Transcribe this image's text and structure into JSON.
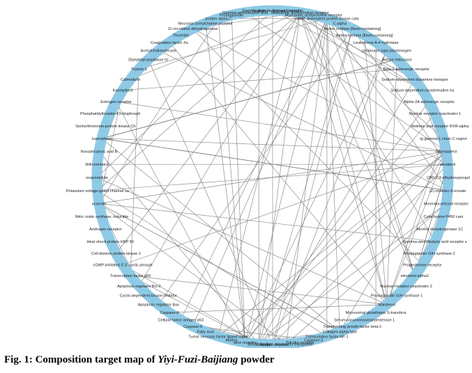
{
  "figure": {
    "caption_prefix": "Fig. 1: Composition target map of ",
    "caption_italic": "Yiyi-Fuzi-Baijiang",
    "caption_suffix": " powder"
  },
  "network": {
    "node_color": "#8ecae6",
    "edge_color": "#7a7a7a",
    "nodes": [
      "Gamma-aminobutyric acid receptor",
      "Sodium channel",
      "Muscarinic acetylcholine receptor M1",
      "Muscarinic acetylcholine receptor M3",
      "cAMP-dependent protein kinase catalytic subunit",
      "C-alpha",
      "Amine oxidase [flavin-containing] A",
      "Amine oxidase [flavin-containing] B",
      "Leukotriene A-4 hydrolase",
      "Urokinase-type plasminogen",
      "Aldose reductase",
      "Beta-2 adrenergic receptor",
      "Sodium-dependent dopamine transporter",
      "Sodium-dependent noradrenaline transporter",
      "Alpha-2A adrenergic receptor",
      "Nuclear receptor coactivator 1",
      "Retinoic acid receptor RXR-alpha",
      "Ig gamma-1 chain C region",
      "Stigmasterol",
      "sitosterol",
      "(2R)-2,3-dihydroxypropyl",
      "(Z)-octadec-9-enoate",
      "Mineralocorticoid receptor",
      "Cytochrome P450 cam",
      "Alcohol dehydrogenase 1C",
      "Gamma-aminobutyric acid receptor subunit alpha-1",
      "Prostaglandin G/H synthase 2",
      "Progesterone receptor",
      "sitosterol alpha1",
      "Nuclear receptor coactivator 2",
      "Prostaglandin G/H synthase 1",
      "Mandenol",
      "Microsomal glutathione S-transferase",
      "Serum paraoxonase/arylesterase 1",
      "Transforming growth factor beta-1",
      "Collagen alpha type",
      "Transcription factor AP-1",
      "Caspase-3",
      "Toll-like receptor",
      "Sodium-dependent transporter",
      "Glucagon receptor",
      "Solute carrier",
      "olive receptor",
      "Mutton",
      "Tumor necrosis factor ligand superfamily member 6",
      "Fatty acid",
      "Caspase-9",
      "Cellular tumor antigen p53",
      "Caspase-8",
      "Apoptosis regulator Bax",
      "Cyclin-dependent kinase inhibitor 1",
      "Apoptosis regulator Bcl-2",
      "Transcription factor p65",
      "cGMP-inhibited 3',5'-cyclic phosphodiesterase A",
      "Cell division protein kinase 2",
      "Heat shock protein HSP 90",
      "Androgen receptor",
      "Nitric oxide synthase, inducible",
      "acacetin",
      "Potassium voltage-gated channel subfamily H member 2",
      "isoprostolide",
      "Wilmorinine C",
      "Nonadecanoic acid B",
      "kaempferol",
      "Serine/threonine-protein kinase Chk1",
      "Phosphatidylinositol-4,5-bisphosphate 3-kinase catalytic subunit, gamma isoform",
      "Estrogen receptor",
      "Kaempferol",
      "Calmodulin",
      "Trypsin-1",
      "Dipeptidyl peptidase IV",
      "Acetylcholinesterase",
      "Coagulation factor Xa",
      "Thrombin",
      "11-cis-retinol dehydrogenase",
      "Neuronal acetylcholine receptor",
      "protein alpha-7",
      "Prostaglandin",
      "Gamma-aminobutyric acid",
      "Sodium"
    ]
  }
}
